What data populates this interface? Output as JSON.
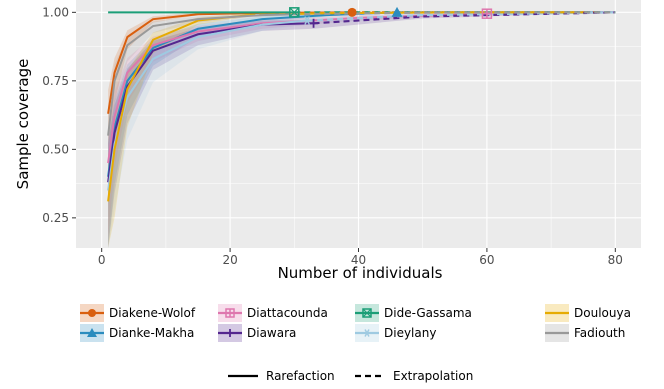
{
  "chart_data": {
    "type": "line",
    "xlabel": "Number of individuals",
    "ylabel": "Sample coverage",
    "xlim": [
      -4,
      84
    ],
    "ylim": [
      0.14,
      1.045
    ],
    "x_ticks": [
      0,
      20,
      40,
      60,
      80
    ],
    "y_ticks": [
      0.25,
      0.5,
      0.75,
      1.0
    ],
    "y_tick_labels": [
      "0.25",
      "0.50",
      "0.75",
      "1.00"
    ],
    "panel_background": "#ebebeb",
    "grid": true,
    "legend_position": "bottom",
    "series": [
      {
        "name": "Diakene-Wolof",
        "color": "#d95f0e",
        "marker": "circle",
        "observed_x": 39,
        "extrap_end": 78,
        "x": [
          1,
          2,
          4,
          8,
          15,
          25,
          39,
          55,
          78
        ],
        "y": [
          0.63,
          0.78,
          0.91,
          0.975,
          0.993,
          0.998,
          1.0,
          1.0,
          1.0
        ]
      },
      {
        "name": "Dianke-Makha",
        "color": "#2b8cbe",
        "marker": "triangle",
        "observed_x": 46,
        "extrap_end": 80,
        "x": [
          1,
          2,
          4,
          8,
          15,
          25,
          35,
          46,
          60,
          80
        ],
        "y": [
          0.4,
          0.58,
          0.75,
          0.87,
          0.94,
          0.975,
          0.99,
          1.0,
          1.0,
          1.0
        ]
      },
      {
        "name": "Diattacounda",
        "color": "#de77ae",
        "marker": "square-cross",
        "observed_x": 60,
        "extrap_end": 80,
        "x": [
          1,
          2,
          4,
          8,
          15,
          25,
          40,
          60,
          80
        ],
        "y": [
          0.45,
          0.62,
          0.78,
          0.88,
          0.93,
          0.96,
          0.98,
          0.995,
          1.0
        ]
      },
      {
        "name": "Diawara",
        "color": "#54278f",
        "marker": "plus",
        "observed_x": 33,
        "extrap_end": 80,
        "x": [
          1,
          2,
          4,
          8,
          15,
          25,
          33,
          50,
          80
        ],
        "y": [
          0.38,
          0.56,
          0.73,
          0.86,
          0.92,
          0.955,
          0.96,
          0.985,
          1.0
        ]
      },
      {
        "name": "Dide-Gassama",
        "color": "#1b9e77",
        "marker": "square-x",
        "observed_x": 30,
        "extrap_end": 80,
        "x": [
          1,
          30,
          80
        ],
        "y": [
          1.0,
          1.0,
          1.0
        ]
      },
      {
        "name": "Dieylany",
        "color": "#9ecae1",
        "marker": "asterisk",
        "observed_x": 32,
        "extrap_end": 80,
        "x": [
          1,
          2,
          4,
          8,
          15,
          25,
          32,
          50,
          80
        ],
        "y": [
          0.35,
          0.52,
          0.69,
          0.83,
          0.91,
          0.955,
          0.97,
          0.99,
          1.0
        ]
      },
      {
        "name": "Doulouya",
        "color": "#e6ab02",
        "marker": "none",
        "observed_x": 23,
        "extrap_end": 75,
        "x": [
          1,
          2,
          4,
          8,
          15,
          23,
          35,
          55,
          75
        ],
        "y": [
          0.31,
          0.5,
          0.72,
          0.9,
          0.97,
          0.99,
          0.997,
          1.0,
          1.0
        ]
      },
      {
        "name": "Fadiouth",
        "color": "#999999",
        "marker": "none",
        "observed_x": 30,
        "extrap_end": 80,
        "x": [
          1,
          2,
          4,
          8,
          15,
          25,
          30,
          50,
          80
        ],
        "y": [
          0.55,
          0.75,
          0.88,
          0.95,
          0.975,
          0.99,
          0.993,
          0.999,
          1.0
        ]
      }
    ],
    "line_types": [
      {
        "label": "Rarefaction",
        "style": "solid"
      },
      {
        "label": "Extrapolation",
        "style": "dashed"
      }
    ]
  }
}
